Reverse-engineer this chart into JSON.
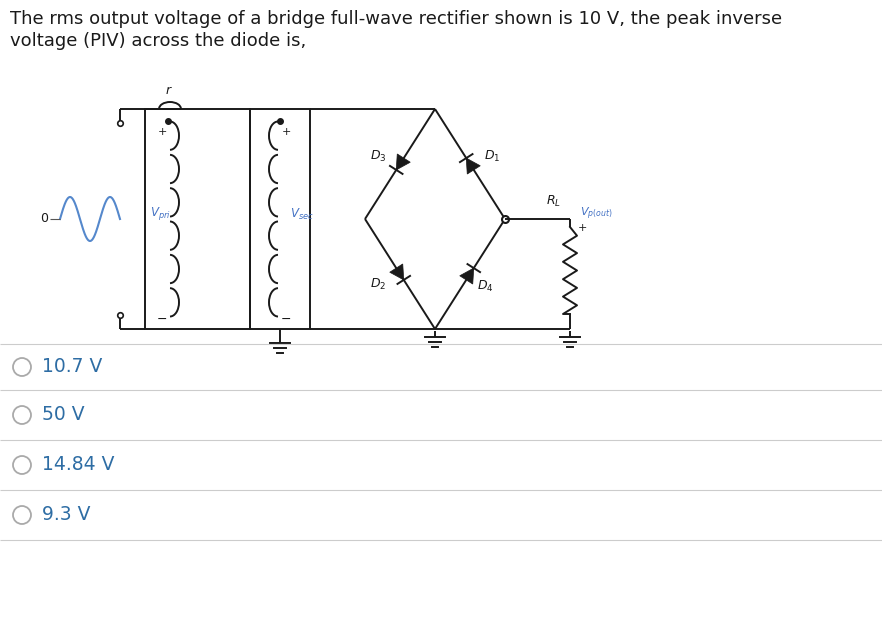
{
  "title_line1": "The rms output voltage of a bridge full-wave rectifier shown is 10 V, the peak inverse",
  "title_line2": "voltage (PIV) across the diode is,",
  "options": [
    "10.7 V",
    "50 V",
    "14.84 V",
    "9.3 V"
  ],
  "option_color": "#2e6da4",
  "text_color": "#1a1a1a",
  "bg_color": "#ffffff",
  "circuit_color": "#1a1a1a",
  "label_color": "#4472c4",
  "separator_color": "#cccccc",
  "title_fontsize": 13.0,
  "option_fontsize": 13.5,
  "circuit_lw": 1.4
}
